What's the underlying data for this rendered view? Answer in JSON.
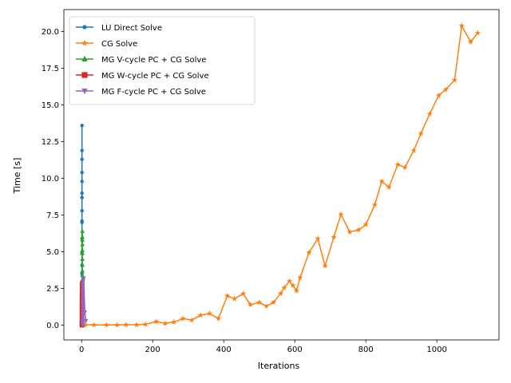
{
  "chart_data": {
    "type": "line",
    "title": "",
    "xlabel": "Iterations",
    "ylabel": "Time [s]",
    "xlim": [
      -50,
      1175
    ],
    "ylim": [
      -1.0,
      21.5
    ],
    "xticks": [
      0,
      200,
      400,
      600,
      800,
      1000
    ],
    "yticks": [
      0.0,
      2.5,
      5.0,
      7.5,
      10.0,
      12.5,
      15.0,
      17.5,
      20.0
    ],
    "ytick_labels": [
      "0.0",
      "2.5",
      "5.0",
      "7.5",
      "10.0",
      "12.5",
      "15.0",
      "17.5",
      "20.0"
    ],
    "grid": false,
    "legend_position": "upper-left",
    "series": [
      {
        "name": "LU Direct Solve",
        "color": "#1f77b4",
        "marker": "circle",
        "x": [
          1,
          1,
          1,
          1,
          1,
          1,
          1,
          1,
          1,
          1,
          1,
          1,
          1,
          1,
          1,
          1,
          1,
          1,
          1,
          1,
          1,
          1,
          1,
          1,
          1,
          1,
          1,
          1,
          1,
          1,
          1,
          1,
          1,
          1
        ],
        "y": [
          0.0,
          0.01,
          0.02,
          0.04,
          0.07,
          0.1,
          0.15,
          0.2,
          0.3,
          0.4,
          0.55,
          0.7,
          0.9,
          1.1,
          1.35,
          1.6,
          1.9,
          2.2,
          2.6,
          3.0,
          3.5,
          4.1,
          4.9,
          5.9,
          7.0,
          7.1,
          7.8,
          8.7,
          9.0,
          9.8,
          10.4,
          11.3,
          11.9,
          13.6
        ]
      },
      {
        "name": "CG Solve",
        "color": "#ff7f0e",
        "marker": "star",
        "x": [
          1,
          2,
          4,
          6,
          10,
          35,
          70,
          100,
          125,
          155,
          180,
          210,
          235,
          260,
          285,
          310,
          335,
          360,
          385,
          410,
          430,
          455,
          475,
          500,
          520,
          540,
          560,
          570,
          585,
          595,
          605,
          615,
          640,
          665,
          685,
          710,
          730,
          755,
          780,
          800,
          825,
          845,
          865,
          890,
          910,
          935,
          955,
          980,
          1005,
          1025,
          1050,
          1070,
          1095,
          1115
        ],
        "y": [
          0.0,
          0.01,
          0.02,
          0.03,
          0.03,
          0.02,
          0.02,
          0.02,
          0.03,
          0.03,
          0.06,
          0.25,
          0.12,
          0.22,
          0.45,
          0.35,
          0.68,
          0.8,
          0.45,
          2.0,
          1.8,
          2.15,
          1.4,
          1.55,
          1.3,
          1.55,
          2.15,
          2.55,
          3.0,
          2.7,
          2.35,
          3.25,
          4.95,
          5.9,
          4.05,
          6.0,
          7.55,
          6.35,
          6.5,
          6.85,
          8.2,
          9.8,
          9.4,
          10.95,
          10.75,
          11.9,
          13.05,
          14.4,
          15.65,
          16.05,
          16.7,
          20.4,
          19.3,
          19.9
        ]
      },
      {
        "name": "MG V-cycle PC + CG Solve",
        "color": "#2ca02c",
        "marker": "triangle-up",
        "x": [
          2,
          2,
          2,
          2,
          2,
          2,
          2,
          2,
          2,
          2,
          2,
          2,
          2,
          2,
          2,
          2,
          2,
          2,
          2,
          2,
          2,
          2,
          2,
          2
        ],
        "y": [
          0.0,
          0.1,
          0.2,
          0.35,
          0.5,
          0.7,
          0.9,
          1.1,
          1.35,
          1.6,
          1.9,
          2.2,
          2.6,
          3.0,
          3.4,
          3.7,
          4.1,
          4.5,
          4.9,
          5.1,
          5.5,
          5.8,
          6.0,
          6.4
        ]
      },
      {
        "name": "MG W-cycle PC + CG Solve",
        "color": "#d62728",
        "marker": "square",
        "x": [
          1,
          1,
          1,
          1,
          1,
          1,
          1,
          1,
          1,
          1,
          1,
          1,
          1,
          1,
          1,
          1,
          1,
          1,
          1,
          1,
          1,
          1,
          1,
          1,
          1,
          1
        ],
        "y": [
          0.0,
          0.02,
          0.05,
          0.1,
          0.15,
          0.2,
          0.3,
          0.4,
          0.5,
          0.6,
          0.7,
          0.8,
          0.9,
          1.0,
          1.1,
          1.2,
          1.3,
          1.4,
          1.5,
          1.6,
          1.75,
          1.9,
          2.05,
          2.2,
          2.5,
          2.8
        ]
      },
      {
        "name": "MG F-cycle PC + CG Solve",
        "color": "#9467bd",
        "marker": "triangle-down",
        "x": [
          3,
          3,
          3,
          3,
          3,
          3,
          3,
          3,
          3,
          3,
          3,
          3,
          3,
          3,
          3,
          3,
          3,
          4,
          6,
          9,
          12
        ],
        "y": [
          0.0,
          0.1,
          0.2,
          0.3,
          0.4,
          0.6,
          0.8,
          1.0,
          1.2,
          1.4,
          1.6,
          1.8,
          2.0,
          2.2,
          2.4,
          2.6,
          2.8,
          3.0,
          3.2,
          0.9,
          0.3
        ]
      }
    ]
  }
}
